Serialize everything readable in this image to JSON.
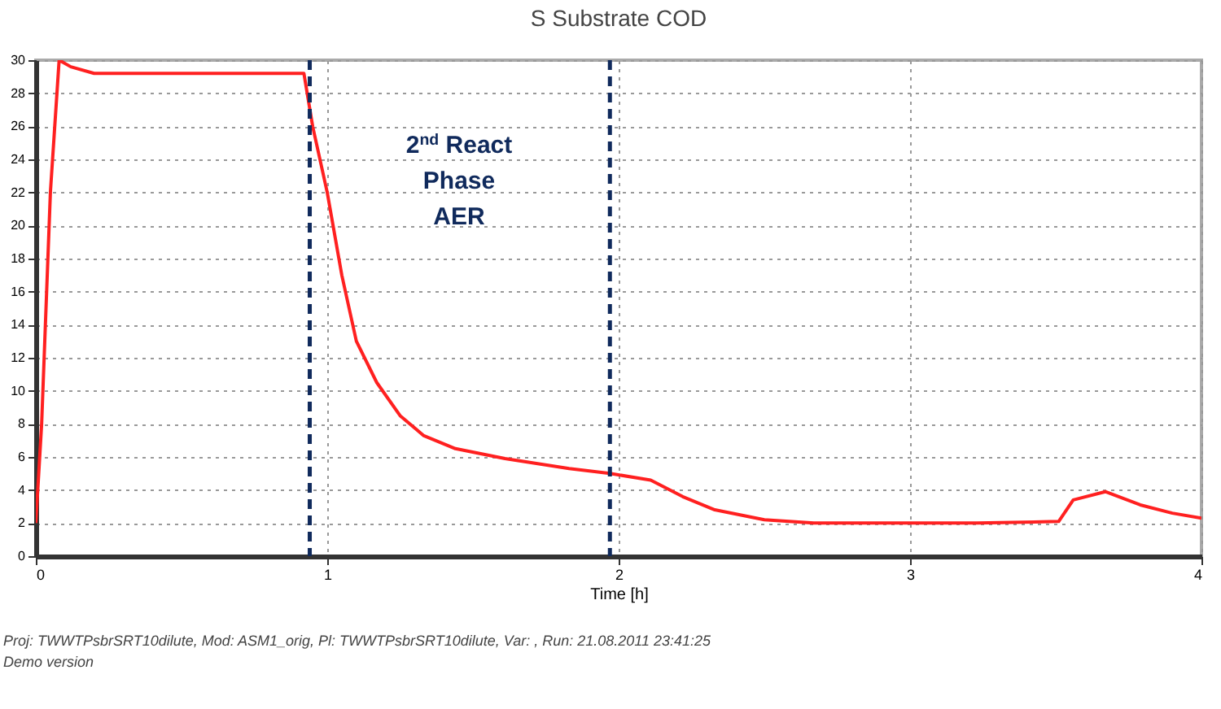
{
  "chart_data": {
    "type": "line",
    "title": "S Substrate COD",
    "xlabel": "Time [h]",
    "x": [
      0,
      0.02,
      0.05,
      0.08,
      0.12,
      0.2,
      0.5,
      0.92,
      0.95,
      1.0,
      1.05,
      1.1,
      1.17,
      1.25,
      1.33,
      1.44,
      1.61,
      1.83,
      1.97,
      2.11,
      2.22,
      2.33,
      2.5,
      2.67,
      3.0,
      3.23,
      3.51,
      3.56,
      3.67,
      3.79,
      3.9,
      4.0
    ],
    "series": [
      {
        "color": "#ff2020",
        "values": [
          2,
          8,
          22,
          30,
          29.6,
          29.2,
          29.2,
          29.2,
          26,
          22,
          17,
          13,
          10.5,
          8.5,
          7.3,
          6.5,
          5.9,
          5.3,
          5,
          4.6,
          3.6,
          2.8,
          2.2,
          2,
          2,
          2,
          2.1,
          3.4,
          3.9,
          3.1,
          2.6,
          2.3
        ]
      }
    ],
    "xlim": [
      0,
      4
    ],
    "xticks": [
      0,
      1,
      2,
      3,
      4
    ],
    "ylim": [
      0,
      30
    ],
    "yticks": [
      0,
      2,
      4,
      6,
      8,
      10,
      12,
      14,
      16,
      18,
      20,
      22,
      24,
      26,
      28,
      30
    ],
    "grid": true,
    "ref_lines": [
      {
        "axis": "x",
        "value": 0.94,
        "color": "#102a5c",
        "line_style": "dashed"
      },
      {
        "axis": "x",
        "value": 1.97,
        "color": "#102a5c",
        "line_style": "dashed"
      }
    ],
    "annotations": [
      "2$^{nd}$ React\nPhase\nAER",
      "Proj: TWWTPsbrSRT10dilute, Mod: ASM1_orig, Pl: TWWTPsbrSRT10dilute, Var: , Run: 21.08.2011 23:41:25",
      "Demo version"
    ]
  }
}
